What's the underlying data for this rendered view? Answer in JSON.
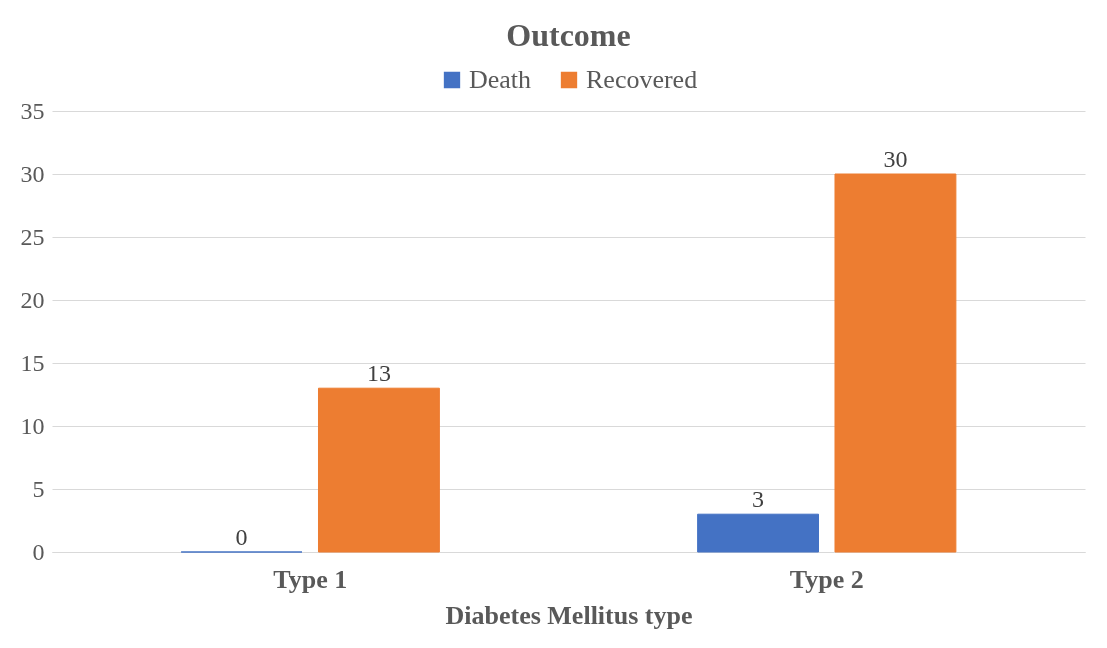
{
  "chart_data": {
    "type": "bar",
    "title": "Outcome",
    "xlabel": "Diabetes Mellitus type",
    "categories": [
      "Type 1",
      "Type 2"
    ],
    "series": [
      {
        "name": "Death",
        "color": "#4472c4",
        "values": [
          0,
          3
        ]
      },
      {
        "name": "Recovered",
        "color": "#ed7d31",
        "values": [
          13,
          30
        ]
      }
    ],
    "ylim": [
      0,
      35
    ],
    "yticks": [
      0,
      5,
      10,
      15,
      20,
      25,
      30,
      35
    ],
    "grid": "y",
    "legend": "top",
    "data_labels": true
  }
}
